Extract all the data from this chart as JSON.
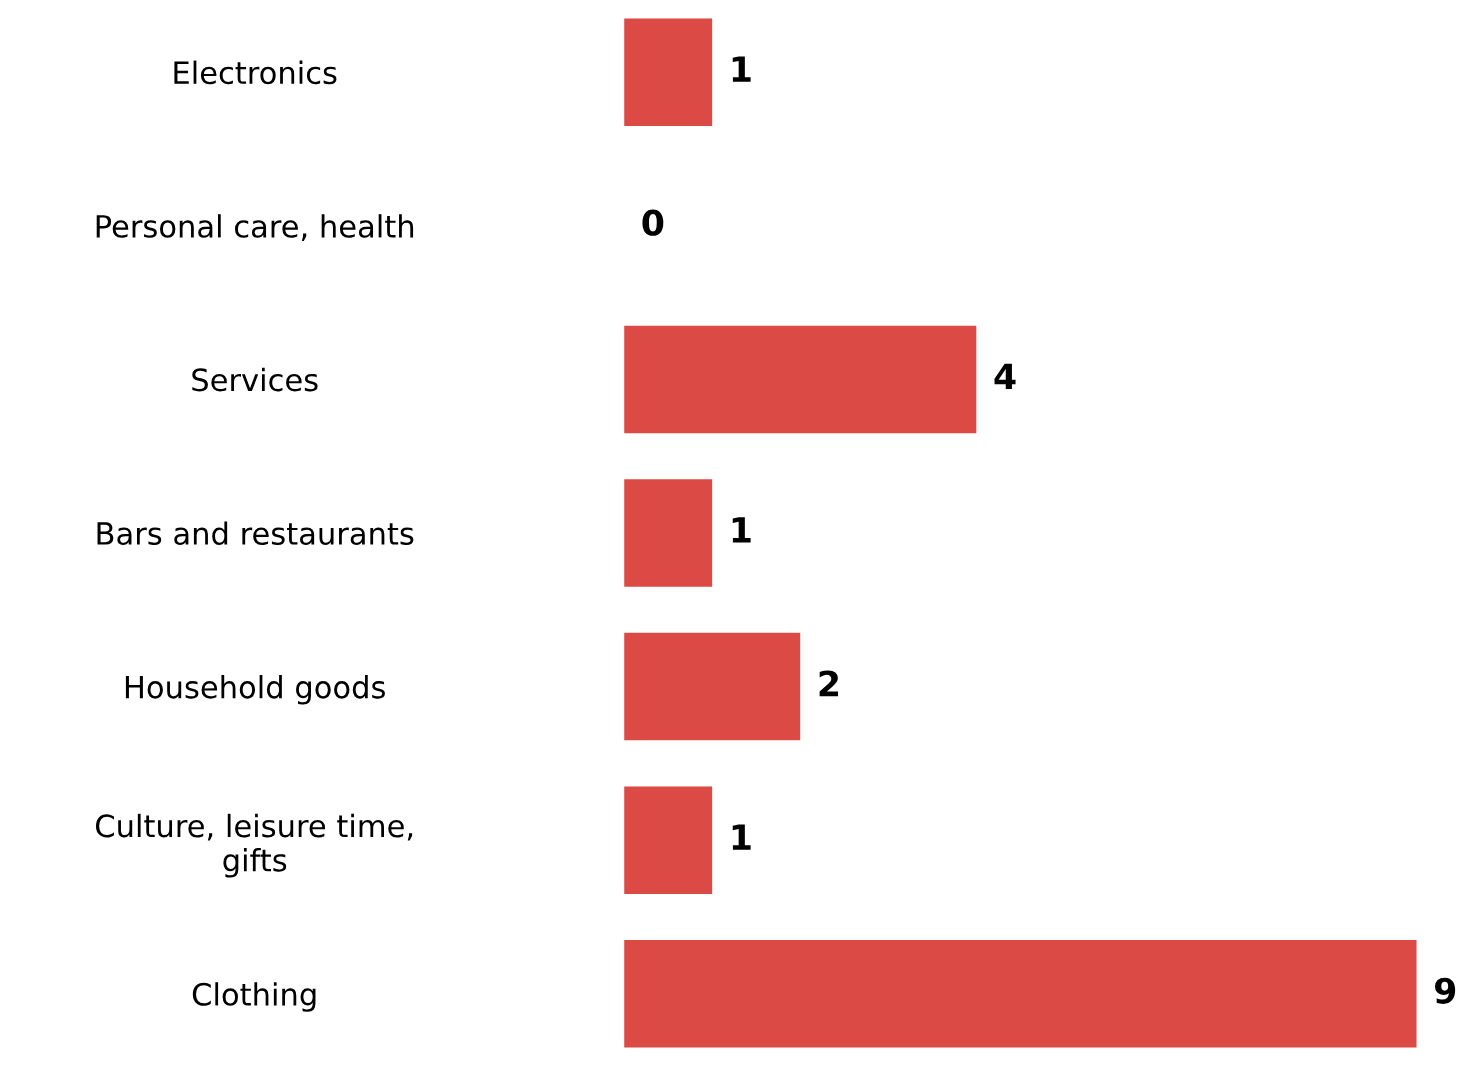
{
  "chart_data": {
    "type": "bar",
    "orientation": "horizontal",
    "categories": [
      "Electronics",
      "Personal care, health",
      "Services",
      "Bars and restaurants",
      "Household goods",
      "Culture, leisure time,\ngifts",
      "Clothing"
    ],
    "values": [
      1,
      0,
      4,
      1,
      2,
      1,
      9
    ],
    "color": "#dc4a45",
    "data_labels": true,
    "grid": false
  }
}
